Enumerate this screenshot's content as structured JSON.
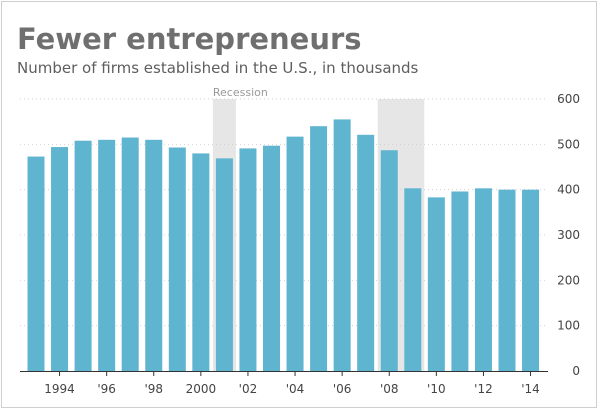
{
  "chart_data": {
    "type": "bar",
    "title": "Fewer entrepreneurs",
    "subtitle": "Number of firms established in the U.S., in thousands",
    "categories": [
      "1993",
      "1994",
      "1995",
      "1996",
      "1997",
      "1998",
      "1999",
      "2000",
      "2001",
      "2002",
      "2003",
      "2004",
      "2005",
      "2006",
      "2007",
      "2008",
      "2009",
      "2010",
      "2011",
      "2012",
      "2013",
      "2014"
    ],
    "values": [
      473,
      494,
      508,
      510,
      515,
      510,
      493,
      480,
      469,
      491,
      497,
      517,
      540,
      555,
      521,
      487,
      403,
      383,
      396,
      403,
      400,
      400
    ],
    "x_tick_labels": [
      "1994",
      "'96",
      "'98",
      "2000",
      "'02",
      "'04",
      "'06",
      "'08",
      "'10",
      "'12",
      "'14"
    ],
    "x_tick_index": [
      1,
      3,
      5,
      7,
      9,
      11,
      13,
      15,
      17,
      19,
      21
    ],
    "y_ticks": [
      0,
      100,
      200,
      300,
      400,
      500,
      600
    ],
    "ylim": [
      0,
      600
    ],
    "recessions": [
      {
        "start_index": 8,
        "end_index": 8
      },
      {
        "start_index": 15,
        "end_index": 16
      }
    ],
    "annotation": "Recession",
    "bar_color": "#5fb4cf",
    "recession_color": "#e6e6e6",
    "xlabel": "",
    "ylabel": ""
  }
}
